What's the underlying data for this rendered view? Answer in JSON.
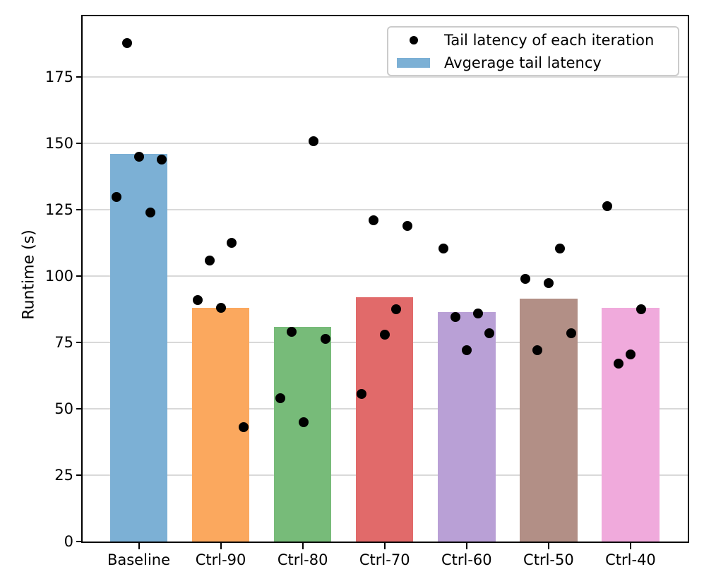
{
  "chart_data": {
    "type": "bar",
    "title": "",
    "xlabel": "",
    "ylabel": "Runtime (s)",
    "categories": [
      "Baseline",
      "Ctrl-90",
      "Ctrl-80",
      "Ctrl-70",
      "Ctrl-60",
      "Ctrl-50",
      "Ctrl-40"
    ],
    "ylim": [
      0,
      198
    ],
    "yticks": [
      0,
      25,
      50,
      75,
      100,
      125,
      150,
      175
    ],
    "grid": "horizontal",
    "grid_color": "#d9d9d9",
    "legend_position": "upper right",
    "series": [
      {
        "name": "Avgerage tail latency",
        "type": "bar",
        "values": [
          146,
          88,
          81,
          92,
          86.5,
          91.5,
          88
        ],
        "colors": [
          "#7cb0d5",
          "#fba85e",
          "#77bb79",
          "#e16a6a",
          "#b9a0d6",
          "#b28f86",
          "#f0aadc"
        ]
      },
      {
        "name": "Tail latency of each iteration",
        "type": "scatter",
        "color": "#000000",
        "points": [
          {
            "c": 0,
            "v": 188,
            "dx": -16.5
          },
          {
            "c": 0,
            "v": 145,
            "dx": 0.5
          },
          {
            "c": 0,
            "v": 144,
            "dx": 32.5
          },
          {
            "c": 0,
            "v": 130,
            "dx": -31.5
          },
          {
            "c": 0,
            "v": 124,
            "dx": 16.5
          },
          {
            "c": 1,
            "v": 112.5,
            "dx": 15.5
          },
          {
            "c": 1,
            "v": 106,
            "dx": -16
          },
          {
            "c": 1,
            "v": 91,
            "dx": -32.5
          },
          {
            "c": 1,
            "v": 88,
            "dx": 0.5
          },
          {
            "c": 1,
            "v": 43,
            "dx": 32.5
          },
          {
            "c": 2,
            "v": 151,
            "dx": 15.5
          },
          {
            "c": 2,
            "v": 79,
            "dx": -16
          },
          {
            "c": 2,
            "v": 76.5,
            "dx": 32.5
          },
          {
            "c": 2,
            "v": 54,
            "dx": -32
          },
          {
            "c": 2,
            "v": 45,
            "dx": 1.5
          },
          {
            "c": 3,
            "v": 121,
            "dx": -16
          },
          {
            "c": 3,
            "v": 119,
            "dx": 32.5
          },
          {
            "c": 3,
            "v": 87.5,
            "dx": 16.5
          },
          {
            "c": 3,
            "v": 78,
            "dx": 0.5
          },
          {
            "c": 3,
            "v": 55.5,
            "dx": -33
          },
          {
            "c": 4,
            "v": 110.5,
            "dx": -33
          },
          {
            "c": 4,
            "v": 86,
            "dx": 16.5
          },
          {
            "c": 4,
            "v": 84.5,
            "dx": -16
          },
          {
            "c": 4,
            "v": 78.5,
            "dx": 32.5
          },
          {
            "c": 4,
            "v": 72,
            "dx": 0.5
          },
          {
            "c": 5,
            "v": 110.5,
            "dx": 16
          },
          {
            "c": 5,
            "v": 99,
            "dx": -33
          },
          {
            "c": 5,
            "v": 97.5,
            "dx": 0
          },
          {
            "c": 5,
            "v": 78.5,
            "dx": 32
          },
          {
            "c": 5,
            "v": 72,
            "dx": -16
          },
          {
            "c": 6,
            "v": 126.5,
            "dx": -32.5
          },
          {
            "c": 6,
            "v": 87.5,
            "dx": 15.5
          },
          {
            "c": 6,
            "v": 70.5,
            "dx": 0
          },
          {
            "c": 6,
            "v": 67,
            "dx": -17
          }
        ]
      }
    ],
    "legend": {
      "entries": [
        {
          "label": "Tail latency of each iteration",
          "marker": "dot",
          "color": "#000000"
        },
        {
          "label": "Avgerage tail latency",
          "marker": "patch",
          "color": "#7cb0d5"
        }
      ]
    }
  }
}
